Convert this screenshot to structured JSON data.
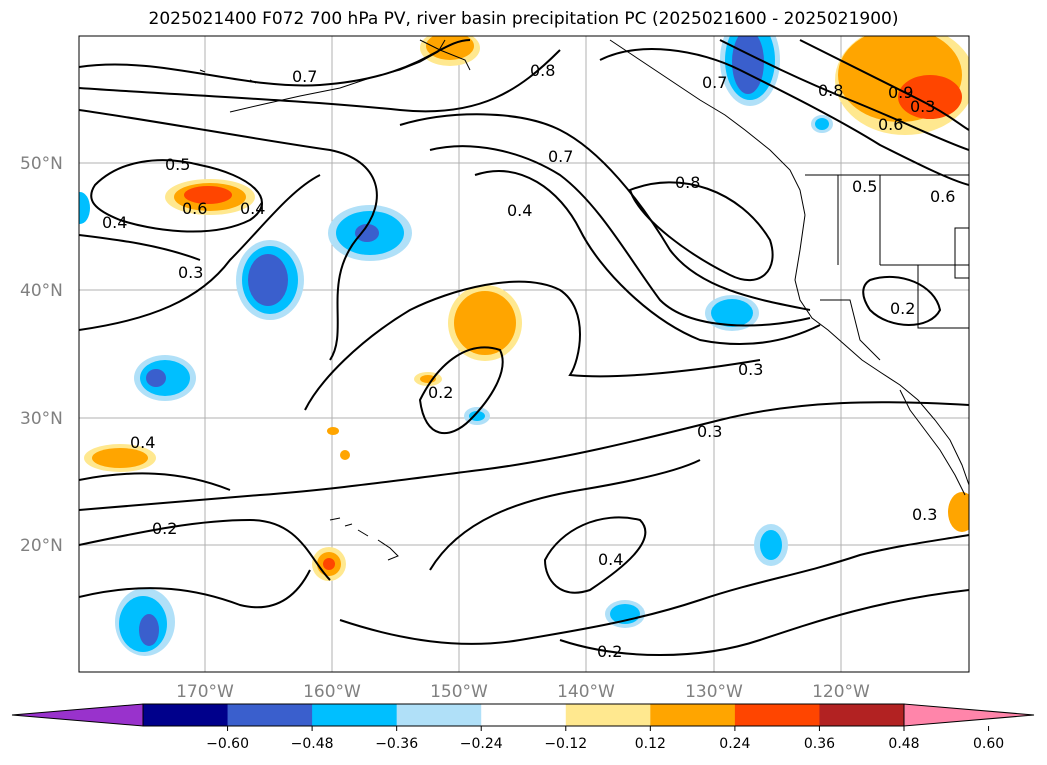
{
  "title": "2025021400 F072 700 hPa PV, river basin precipitation PC (2025021600 - 2025021900)",
  "lat_labels": [
    "50°N",
    "40°N",
    "30°N",
    "20°N"
  ],
  "lon_labels": [
    "170°W",
    "160°W",
    "150°W",
    "140°W",
    "130°W",
    "120°W"
  ],
  "contour_labels": [
    "0.7",
    "0.8",
    "0.7",
    "0.8",
    "0.7",
    "0.8",
    "0.9",
    "0.5",
    "0.5",
    "0.6",
    "0.6",
    "0.4",
    "0.4",
    "0.3",
    "0.4",
    "0.2",
    "0.3",
    "0.3",
    "0.4",
    "0.2",
    "0.4",
    "0.2",
    "0.3",
    "0.3",
    "0.2",
    "0.6"
  ],
  "colorbar": {
    "ticks": [
      "−0.60",
      "−0.48",
      "−0.36",
      "−0.24",
      "−0.12",
      "0.12",
      "0.24",
      "0.36",
      "0.48",
      "0.60"
    ],
    "colors": [
      "#9932cc",
      "#00008b",
      "#3a5fcd",
      "#00bfff",
      "#b0e0f8",
      "#ffffff",
      "#ffe88f",
      "#ffa500",
      "#ff4500",
      "#b22222",
      "#ff85aa"
    ]
  },
  "colors": {
    "gridline": "#b0b0b0",
    "contour": "#000000",
    "coastline": "#000000"
  }
}
